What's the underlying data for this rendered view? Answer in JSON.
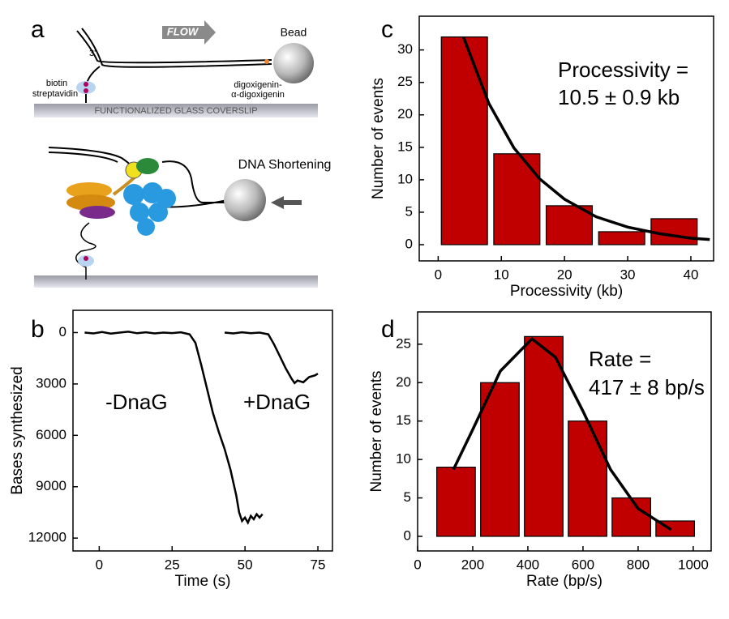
{
  "diagram": {
    "panel_label": "a",
    "flow": "FLOW",
    "bead": "Bead",
    "three_prime": "3'",
    "biotin": "biotin",
    "streptavidin": "streptavidin",
    "dig1": "digoxigenin-",
    "dig2": "α-digoxigenin",
    "coverslip": "FUNCTIONALIZED GLASS COVERSLIP",
    "shortening": "DNA Shortening"
  },
  "chart_data": [
    {
      "type": "line",
      "panel_label": "b",
      "xlabel": "Time (s)",
      "ylabel": "Bases synthesized",
      "xlim": [
        -9,
        80
      ],
      "xticks": [
        0,
        25,
        50,
        75
      ],
      "ylim": [
        -1300,
        12750
      ],
      "y_inverted": true,
      "yticks": [
        0,
        3000,
        6000,
        9000,
        12000
      ],
      "series": [
        {
          "name": "-DnaG",
          "color": "#000000",
          "x": [
            -5,
            -2,
            1,
            4,
            7,
            10,
            13,
            16,
            19,
            22,
            25,
            28,
            31,
            33,
            35,
            37,
            39,
            41,
            43,
            45,
            47,
            48,
            49,
            50,
            51,
            52,
            53,
            54,
            55,
            56
          ],
          "values": [
            0,
            50,
            -30,
            60,
            0,
            -50,
            40,
            -20,
            50,
            0,
            30,
            -20,
            100,
            600,
            1900,
            3300,
            4700,
            5800,
            6800,
            8000,
            9500,
            10500,
            11000,
            10800,
            11100,
            10700,
            10900,
            10600,
            10800,
            10600
          ]
        },
        {
          "name": "+DnaG",
          "color": "#000000",
          "x": [
            43,
            46,
            49,
            52,
            55,
            58,
            60,
            62,
            64,
            66,
            67,
            68,
            70,
            72,
            74,
            75
          ],
          "values": [
            0,
            50,
            -20,
            40,
            0,
            100,
            700,
            1400,
            2100,
            2700,
            2950,
            2800,
            2900,
            2600,
            2500,
            2400
          ]
        }
      ]
    },
    {
      "type": "histogram",
      "panel_label": "c",
      "xlabel": "Processivity (kb)",
      "ylabel": "Number of events",
      "xlim": [
        -3,
        43.6
      ],
      "xticks": [
        0,
        10,
        20,
        30,
        40
      ],
      "ylim": [
        -2.5,
        35.2
      ],
      "yticks": [
        0,
        5,
        10,
        15,
        20,
        25,
        30
      ],
      "bins": [
        0,
        8.3,
        16.6,
        24.9,
        33.2,
        41.5
      ],
      "values": [
        32,
        14,
        6,
        2,
        4
      ],
      "color": "#c00000",
      "fit": {
        "color": "#000000",
        "x": [
          4,
          8,
          12,
          16,
          20,
          25,
          30,
          35,
          40,
          43
        ],
        "values": [
          32.0,
          21.8,
          14.9,
          10.2,
          7.0,
          4.3,
          2.7,
          1.7,
          1.0,
          0.8
        ]
      },
      "annotation": [
        "Processivity =",
        "10.5 ± 0.9 kb"
      ]
    },
    {
      "type": "histogram",
      "panel_label": "d",
      "xlabel": "Rate (bp/s)",
      "ylabel": "Number of events",
      "xlim": [
        0,
        1065
      ],
      "xticks": [
        0,
        200,
        400,
        600,
        800,
        1000
      ],
      "ylim": [
        -1.9,
        29.2
      ],
      "yticks": [
        0,
        5,
        10,
        15,
        20,
        25
      ],
      "bins": [
        60,
        219,
        378,
        537,
        696,
        855,
        1014
      ],
      "values": [
        9,
        20,
        26,
        15,
        5,
        2
      ],
      "color": "#c00000",
      "fit": {
        "color": "#000000",
        "x": [
          130,
          200,
          300,
          415,
          500,
          600,
          700,
          800,
          920
        ],
        "values": [
          8.7,
          13.9,
          21.5,
          25.7,
          23.3,
          16.3,
          8.7,
          3.6,
          0.86
        ]
      },
      "annotation": [
        "Rate =",
        "417 ± 8 bp/s"
      ]
    }
  ]
}
